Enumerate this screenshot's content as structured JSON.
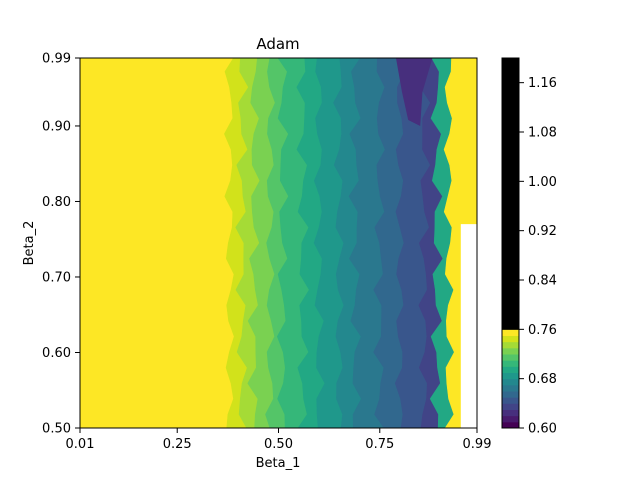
{
  "chart_data": {
    "type": "heatmap",
    "subtype": "filled-contour",
    "title": "Adam",
    "xlabel": "Beta_1",
    "ylabel": "Beta_2",
    "xlim": [
      0.01,
      0.99
    ],
    "ylim": [
      0.5,
      0.99
    ],
    "x_ticks": [
      0.01,
      0.25,
      0.5,
      0.75,
      0.99
    ],
    "x_tick_labels": [
      "0.01",
      "0.25",
      "0.50",
      "0.75",
      "0.99"
    ],
    "y_ticks": [
      0.5,
      0.6,
      0.7,
      0.8,
      0.9,
      0.99
    ],
    "y_tick_labels": [
      "0.50",
      "0.60",
      "0.70",
      "0.80",
      "0.90",
      "0.99"
    ],
    "grid": false,
    "colorbar": {
      "range": [
        0.6,
        1.2
      ],
      "ticks": [
        0.6,
        0.68,
        0.76,
        0.84,
        0.92,
        1.0,
        1.08,
        1.16
      ],
      "tick_labels": [
        "0.60",
        "0.68",
        "0.76",
        "0.84",
        "0.92",
        "1.00",
        "1.08",
        "1.16"
      ],
      "levels": [
        0.6,
        0.61,
        0.62,
        0.63,
        0.64,
        0.65,
        0.66,
        0.67,
        0.68,
        0.69,
        0.7,
        0.71,
        0.72,
        0.73,
        0.74,
        0.75,
        0.76,
        0.77,
        0.78,
        0.79,
        0.8,
        1.2
      ],
      "colors": [
        "#440154",
        "#481a6c",
        "#472f7d",
        "#414487",
        "#39568c",
        "#31688e",
        "#2a788e",
        "#23888e",
        "#1f988b",
        "#22a884",
        "#35b779",
        "#54c568",
        "#7ad151",
        "#a5db36",
        "#d2e21b",
        "#fde725"
      ]
    },
    "bands": [
      {
        "level_low": 0.8,
        "level_high": 1.2,
        "x_from": 0.01,
        "x_to": 0.38,
        "color": "#fde725"
      },
      {
        "level_low": 0.79,
        "level_high": 0.8,
        "x_from": 0.38,
        "x_to": 0.41,
        "color": "#d2e21b"
      },
      {
        "level_low": 0.78,
        "level_high": 0.79,
        "x_from": 0.41,
        "x_to": 0.44,
        "color": "#a5db36"
      },
      {
        "level_low": 0.77,
        "level_high": 0.78,
        "x_from": 0.44,
        "x_to": 0.48,
        "color": "#7ad151"
      },
      {
        "level_low": 0.76,
        "level_high": 0.77,
        "x_from": 0.48,
        "x_to": 0.51,
        "color": "#54c568"
      },
      {
        "level_low": 0.75,
        "level_high": 0.76,
        "x_from": 0.51,
        "x_to": 0.56,
        "color": "#35b779"
      },
      {
        "level_low": 0.74,
        "level_high": 0.75,
        "x_from": 0.56,
        "x_to": 0.6,
        "color": "#22a884"
      },
      {
        "level_low": 0.73,
        "level_high": 0.74,
        "x_from": 0.6,
        "x_to": 0.65,
        "color": "#1f988b"
      },
      {
        "level_low": 0.71,
        "level_high": 0.73,
        "x_from": 0.65,
        "x_to": 0.69,
        "color": "#23888e"
      },
      {
        "level_low": 0.7,
        "level_high": 0.71,
        "x_from": 0.69,
        "x_to": 0.75,
        "color": "#2a788e"
      },
      {
        "level_low": 0.68,
        "level_high": 0.7,
        "x_from": 0.75,
        "x_to": 0.8,
        "color": "#31688e"
      },
      {
        "level_low": 0.65,
        "level_high": 0.68,
        "x_from": 0.8,
        "x_to": 0.86,
        "color": "#39568c"
      },
      {
        "level_low": 0.63,
        "level_high": 0.65,
        "x_from": 0.86,
        "x_to": 0.89,
        "color": "#414487"
      },
      {
        "level_low": 0.75,
        "level_high": 0.8,
        "x_from": 0.89,
        "x_to": 0.92,
        "color": "#22a884"
      },
      {
        "level_low": 0.8,
        "level_high": 1.2,
        "x_from": 0.92,
        "x_to": 0.99,
        "color": "#fde725"
      }
    ],
    "minimum_region": {
      "level_low": 0.6,
      "level_high": 0.63,
      "x_from": 0.79,
      "x_to": 0.88,
      "y_from": 0.9,
      "y_to": 0.99,
      "color": "#472f7d"
    },
    "missing_region": {
      "x_from": 0.95,
      "x_to": 0.99,
      "y_from": 0.5,
      "y_to": 0.77
    }
  }
}
